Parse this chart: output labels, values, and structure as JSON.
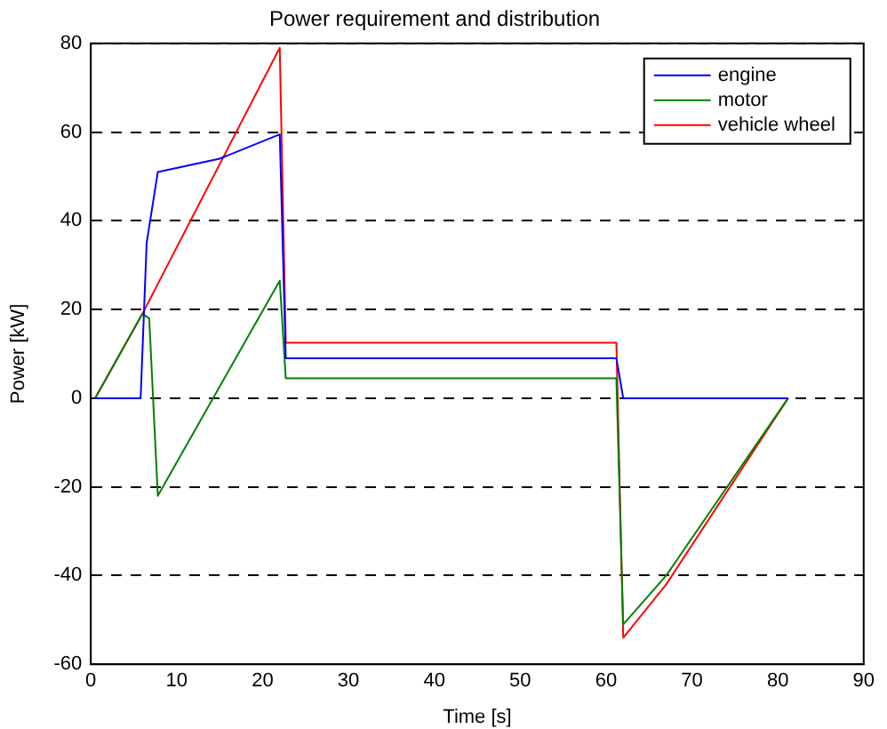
{
  "chart_data": {
    "type": "line",
    "title": "Power requirement and distribution",
    "xlabel": "Time [s]",
    "ylabel": "Power [kW]",
    "xlim": [
      0,
      90
    ],
    "xticks": [
      0,
      10,
      20,
      30,
      40,
      50,
      60,
      70,
      80,
      90
    ],
    "ylim": [
      -60,
      80
    ],
    "yticks": [
      -60,
      -40,
      -20,
      0,
      20,
      40,
      60,
      80
    ],
    "grid": "y",
    "line_style": "solid",
    "legend": "top right",
    "marker": "none",
    "series": [
      {
        "name": "engine",
        "color": "#0000ff",
        "x": [
          0.5,
          5.8,
          6.5,
          7.8,
          15,
          22,
          22.7,
          61.2,
          62,
          81.2
        ],
        "values": [
          0,
          0,
          35,
          51,
          54,
          59.5,
          9,
          9,
          0,
          0
        ]
      },
      {
        "name": "motor",
        "color": "#008000",
        "x": [
          0.5,
          6,
          6.8,
          7.8,
          22,
          22.7,
          61.2,
          62,
          67,
          81.2
        ],
        "values": [
          0,
          19,
          18,
          -22,
          26.5,
          4.5,
          4.5,
          -51,
          -40,
          0
        ]
      },
      {
        "name": "vehicle wheel",
        "color": "#ff0000",
        "x": [
          0.5,
          6,
          22,
          22.7,
          61.2,
          62,
          67,
          81.2
        ],
        "values": [
          0,
          19,
          79,
          12.5,
          12.5,
          -54,
          -42,
          0
        ]
      }
    ]
  }
}
